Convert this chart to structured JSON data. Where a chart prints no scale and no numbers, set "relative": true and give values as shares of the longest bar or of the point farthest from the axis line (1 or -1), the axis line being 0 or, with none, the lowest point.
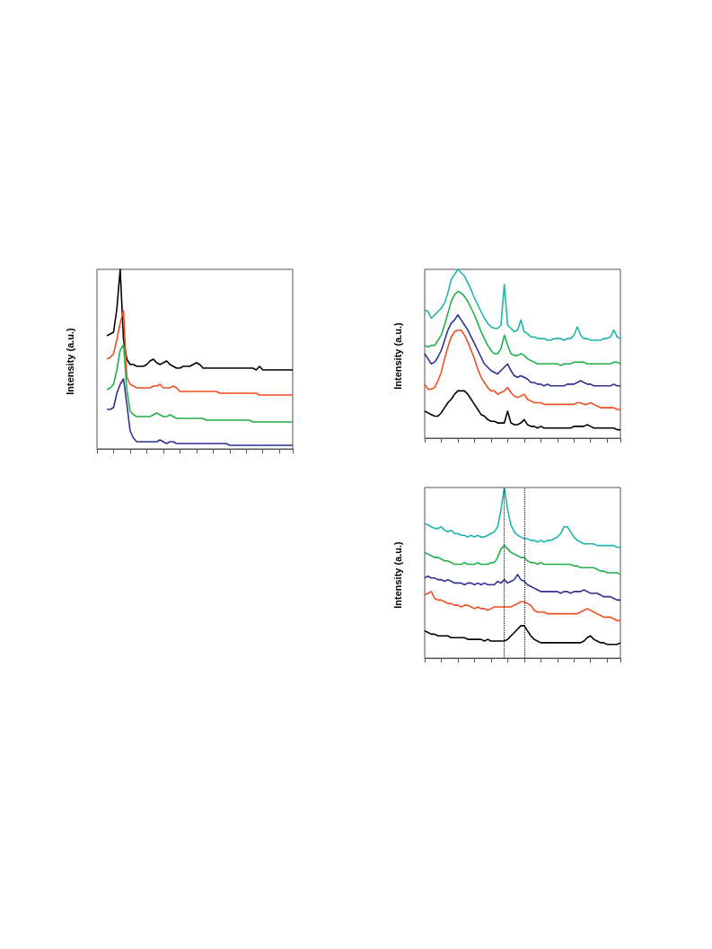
{
  "chart_data": [
    {
      "type": "line",
      "ylabel": "Intensity (a.u.)",
      "relative": true,
      "grid": false,
      "legend": false,
      "marker": "none",
      "categories": [
        null,
        null,
        null,
        null,
        null,
        null,
        null,
        null,
        null,
        null,
        null,
        null,
        null,
        null,
        null,
        null,
        null,
        null,
        null,
        null,
        null,
        null,
        null,
        null,
        null,
        null,
        null,
        null,
        null,
        null,
        null,
        null,
        null,
        null,
        null,
        null,
        null,
        null,
        null,
        null,
        null,
        null,
        null,
        null,
        null,
        null,
        null,
        null,
        null,
        null,
        null,
        null,
        null,
        null,
        null,
        null,
        null,
        null,
        null,
        null
      ],
      "series": [
        {
          "color": "#000000",
          "values": [
            null,
            null,
            null,
            0.63,
            0.64,
            0.65,
            0.78,
            1.0,
            0.61,
            0.5,
            0.47,
            0.47,
            0.46,
            0.46,
            0.46,
            0.47,
            0.49,
            0.5,
            0.48,
            0.47,
            0.48,
            0.49,
            0.47,
            0.46,
            0.45,
            0.45,
            0.46,
            0.46,
            0.46,
            0.47,
            0.48,
            0.47,
            0.45,
            0.45,
            0.45,
            0.45,
            0.45,
            0.45,
            0.45,
            0.45,
            0.45,
            0.45,
            0.45,
            0.45,
            0.45,
            0.45,
            0.45,
            0.45,
            0.44,
            0.46,
            0.44,
            0.44,
            0.44,
            0.44,
            0.44,
            0.44,
            0.44,
            0.44,
            0.44,
            0.44
          ]
        },
        {
          "color": "#f04e23",
          "values": [
            null,
            null,
            null,
            0.5,
            0.51,
            0.53,
            0.61,
            0.7,
            0.77,
            0.4,
            0.36,
            0.35,
            0.34,
            0.34,
            0.34,
            0.34,
            0.34,
            0.35,
            0.35,
            0.36,
            0.34,
            0.34,
            0.34,
            0.35,
            0.34,
            0.32,
            0.32,
            0.32,
            0.32,
            0.32,
            0.32,
            0.32,
            0.32,
            0.32,
            0.32,
            0.32,
            0.32,
            0.31,
            0.31,
            0.31,
            0.31,
            0.31,
            0.31,
            0.31,
            0.31,
            0.31,
            0.31,
            0.31,
            0.31,
            0.3,
            0.3,
            0.3,
            0.3,
            0.3,
            0.3,
            0.3,
            0.3,
            0.3,
            0.3,
            0.3
          ]
        },
        {
          "color": "#22b04b",
          "values": [
            null,
            null,
            null,
            0.33,
            0.34,
            0.36,
            0.44,
            0.55,
            0.58,
            0.33,
            0.21,
            0.19,
            0.18,
            0.18,
            0.18,
            0.18,
            0.18,
            0.19,
            0.2,
            0.19,
            0.18,
            0.18,
            0.19,
            0.18,
            0.17,
            0.17,
            0.17,
            0.17,
            0.17,
            0.17,
            0.17,
            0.17,
            0.17,
            0.16,
            0.16,
            0.16,
            0.16,
            0.16,
            0.16,
            0.16,
            0.16,
            0.16,
            0.16,
            0.16,
            0.16,
            0.16,
            0.16,
            0.15,
            0.15,
            0.15,
            0.15,
            0.15,
            0.15,
            0.15,
            0.15,
            0.15,
            0.15,
            0.15,
            0.15,
            0.15
          ]
        },
        {
          "color": "#2e3192",
          "values": [
            null,
            null,
            null,
            0.22,
            0.22,
            0.23,
            0.31,
            0.36,
            0.39,
            0.25,
            0.1,
            0.06,
            0.04,
            0.04,
            0.04,
            0.04,
            0.04,
            0.04,
            0.04,
            0.05,
            0.04,
            0.03,
            0.04,
            0.04,
            0.03,
            0.03,
            0.03,
            0.03,
            0.03,
            0.03,
            0.03,
            0.03,
            0.03,
            0.03,
            0.03,
            0.03,
            0.03,
            0.03,
            0.03,
            0.03,
            0.02,
            0.02,
            0.02,
            0.02,
            0.02,
            0.02,
            0.02,
            0.02,
            0.02,
            0.02,
            0.02,
            0.02,
            0.02,
            0.02,
            0.02,
            0.02,
            0.02,
            0.02,
            0.02,
            0.02
          ]
        }
      ]
    },
    {
      "type": "line",
      "ylabel": "Intensity (a.u.)",
      "relative": true,
      "grid": false,
      "legend": false,
      "marker": "none",
      "categories": [
        null,
        null,
        null,
        null,
        null,
        null,
        null,
        null,
        null,
        null,
        null,
        null,
        null,
        null,
        null,
        null,
        null,
        null,
        null,
        null,
        null,
        null,
        null,
        null,
        null,
        null,
        null,
        null,
        null,
        null,
        null,
        null,
        null,
        null,
        null,
        null,
        null,
        null,
        null,
        null,
        null,
        null,
        null,
        null,
        null,
        null,
        null,
        null,
        null,
        null,
        null,
        null,
        null,
        null,
        null,
        null,
        null,
        null,
        null,
        null
      ],
      "series": [
        {
          "color": "#1fb5ad",
          "values": [
            0.76,
            0.75,
            0.71,
            0.73,
            0.75,
            0.77,
            0.8,
            0.86,
            0.94,
            0.97,
            1.0,
            0.98,
            0.96,
            0.92,
            0.88,
            0.83,
            0.79,
            0.75,
            0.71,
            0.68,
            0.66,
            0.65,
            0.65,
            0.67,
            0.91,
            0.67,
            0.65,
            0.63,
            0.64,
            0.7,
            0.63,
            0.62,
            0.6,
            0.6,
            0.59,
            0.59,
            0.59,
            0.58,
            0.58,
            0.59,
            0.59,
            0.59,
            0.58,
            0.59,
            0.59,
            0.61,
            0.66,
            0.61,
            0.59,
            0.59,
            0.58,
            0.58,
            0.58,
            0.58,
            0.59,
            0.59,
            0.6,
            0.64,
            0.6,
            0.59
          ]
        },
        {
          "color": "#22b04b",
          "values": [
            0.55,
            0.54,
            0.55,
            0.55,
            0.58,
            0.61,
            0.67,
            0.74,
            0.81,
            0.85,
            0.87,
            0.86,
            0.84,
            0.81,
            0.77,
            0.73,
            0.68,
            0.63,
            0.59,
            0.55,
            0.52,
            0.5,
            0.5,
            0.53,
            0.61,
            0.55,
            0.5,
            0.49,
            0.49,
            0.5,
            0.49,
            0.47,
            0.46,
            0.45,
            0.44,
            0.44,
            0.44,
            0.44,
            0.44,
            0.44,
            0.44,
            0.43,
            0.44,
            0.44,
            0.44,
            0.45,
            0.45,
            0.45,
            0.45,
            0.44,
            0.44,
            0.44,
            0.44,
            0.44,
            0.44,
            0.44,
            0.44,
            0.45,
            0.45,
            0.44
          ]
        },
        {
          "color": "#2e3192",
          "values": [
            0.5,
            0.47,
            0.44,
            0.45,
            0.48,
            0.52,
            0.58,
            0.64,
            0.68,
            0.7,
            0.73,
            0.7,
            0.67,
            0.64,
            0.6,
            0.56,
            0.52,
            0.48,
            0.44,
            0.42,
            0.4,
            0.39,
            0.38,
            0.4,
            0.42,
            0.44,
            0.4,
            0.37,
            0.36,
            0.37,
            0.36,
            0.35,
            0.33,
            0.33,
            0.32,
            0.32,
            0.31,
            0.32,
            0.31,
            0.31,
            0.31,
            0.31,
            0.31,
            0.32,
            0.32,
            0.32,
            0.33,
            0.34,
            0.33,
            0.32,
            0.32,
            0.31,
            0.31,
            0.31,
            0.31,
            0.31,
            0.31,
            0.32,
            0.31,
            0.31
          ]
        },
        {
          "color": "#f04e23",
          "values": [
            0.32,
            0.29,
            0.29,
            0.3,
            0.34,
            0.39,
            0.47,
            0.54,
            0.6,
            0.63,
            0.64,
            0.64,
            0.61,
            0.57,
            0.52,
            0.47,
            0.41,
            0.36,
            0.33,
            0.3,
            0.28,
            0.28,
            0.26,
            0.27,
            0.28,
            0.3,
            0.27,
            0.25,
            0.24,
            0.25,
            0.26,
            0.23,
            0.22,
            0.21,
            0.21,
            0.21,
            0.2,
            0.2,
            0.2,
            0.2,
            0.2,
            0.2,
            0.2,
            0.2,
            0.2,
            0.2,
            0.21,
            0.21,
            0.2,
            0.2,
            0.21,
            0.2,
            0.19,
            0.18,
            0.18,
            0.18,
            0.18,
            0.18,
            0.17,
            0.17
          ]
        },
        {
          "color": "#000000",
          "values": [
            0.16,
            0.15,
            0.14,
            0.13,
            0.13,
            0.15,
            0.18,
            0.21,
            0.23,
            0.26,
            0.28,
            0.28,
            0.28,
            0.26,
            0.23,
            0.2,
            0.17,
            0.14,
            0.13,
            0.11,
            0.1,
            0.1,
            0.09,
            0.09,
            0.09,
            0.16,
            0.09,
            0.08,
            0.08,
            0.09,
            0.11,
            0.08,
            0.07,
            0.07,
            0.06,
            0.07,
            0.06,
            0.06,
            0.06,
            0.06,
            0.06,
            0.06,
            0.06,
            0.06,
            0.06,
            0.07,
            0.07,
            0.07,
            0.07,
            0.08,
            0.07,
            0.06,
            0.06,
            0.06,
            0.06,
            0.06,
            0.06,
            0.06,
            0.05,
            0.05
          ]
        }
      ]
    },
    {
      "type": "line",
      "ylabel": "Intensity (a.u.)",
      "relative": true,
      "grid": false,
      "legend": false,
      "marker": "none",
      "categories": [
        null,
        null,
        null,
        null,
        null,
        null,
        null,
        null,
        null,
        null,
        null,
        null,
        null,
        null,
        null,
        null,
        null,
        null,
        null,
        null,
        null,
        null,
        null,
        null,
        null,
        null,
        null,
        null,
        null,
        null,
        null,
        null,
        null,
        null,
        null,
        null,
        null,
        null,
        null,
        null,
        null,
        null,
        null,
        null,
        null,
        null,
        null,
        null,
        null,
        null,
        null,
        null,
        null,
        null,
        null,
        null,
        null,
        null,
        null,
        null
      ],
      "series": [
        {
          "color": "#1fb5ad",
          "values": [
            0.79,
            0.78,
            0.77,
            0.76,
            0.76,
            0.77,
            0.75,
            0.74,
            0.75,
            0.73,
            0.73,
            0.72,
            0.72,
            0.71,
            0.72,
            0.71,
            0.72,
            0.71,
            0.71,
            0.72,
            0.73,
            0.74,
            0.77,
            0.87,
            1.0,
            0.87,
            0.78,
            0.74,
            0.72,
            0.71,
            0.7,
            0.7,
            0.69,
            0.69,
            0.68,
            0.69,
            0.68,
            0.69,
            0.69,
            0.7,
            0.71,
            0.73,
            0.77,
            0.77,
            0.74,
            0.71,
            0.69,
            0.68,
            0.67,
            0.67,
            0.67,
            0.67,
            0.66,
            0.66,
            0.66,
            0.66,
            0.66,
            0.66,
            0.65,
            0.65
          ]
        },
        {
          "color": "#22b04b",
          "values": [
            0.62,
            0.61,
            0.6,
            0.59,
            0.59,
            0.58,
            0.57,
            0.57,
            0.56,
            0.55,
            0.55,
            0.55,
            0.56,
            0.55,
            0.55,
            0.55,
            0.56,
            0.55,
            0.55,
            0.55,
            0.56,
            0.56,
            0.59,
            0.64,
            0.66,
            0.64,
            0.62,
            0.61,
            0.6,
            0.59,
            0.59,
            0.57,
            0.56,
            0.56,
            0.55,
            0.56,
            0.55,
            0.55,
            0.55,
            0.55,
            0.55,
            0.55,
            0.55,
            0.55,
            0.55,
            0.54,
            0.54,
            0.53,
            0.53,
            0.53,
            0.53,
            0.53,
            0.52,
            0.51,
            0.51,
            0.5,
            0.5,
            0.5,
            0.5,
            0.49
          ]
        },
        {
          "color": "#2e3192",
          "values": [
            0.47,
            0.48,
            0.47,
            0.47,
            0.46,
            0.46,
            0.45,
            0.46,
            0.45,
            0.44,
            0.44,
            0.44,
            0.43,
            0.44,
            0.44,
            0.43,
            0.44,
            0.43,
            0.44,
            0.43,
            0.43,
            0.43,
            0.45,
            0.44,
            0.46,
            0.44,
            0.45,
            0.46,
            0.49,
            0.46,
            0.45,
            0.43,
            0.42,
            0.41,
            0.4,
            0.39,
            0.39,
            0.39,
            0.39,
            0.39,
            0.39,
            0.38,
            0.39,
            0.39,
            0.38,
            0.39,
            0.39,
            0.39,
            0.4,
            0.39,
            0.38,
            0.38,
            0.38,
            0.37,
            0.36,
            0.36,
            0.36,
            0.35,
            0.34,
            0.34
          ]
        },
        {
          "color": "#f04e23",
          "values": [
            0.37,
            0.38,
            0.39,
            0.35,
            0.34,
            0.34,
            0.33,
            0.32,
            0.32,
            0.31,
            0.31,
            0.3,
            0.31,
            0.31,
            0.3,
            0.29,
            0.3,
            0.29,
            0.29,
            0.28,
            0.29,
            0.3,
            0.3,
            0.3,
            0.3,
            0.3,
            0.3,
            0.31,
            0.32,
            0.33,
            0.33,
            0.32,
            0.31,
            0.28,
            0.27,
            0.27,
            0.27,
            0.26,
            0.26,
            0.26,
            0.26,
            0.26,
            0.26,
            0.26,
            0.26,
            0.26,
            0.26,
            0.27,
            0.28,
            0.29,
            0.28,
            0.27,
            0.26,
            0.25,
            0.24,
            0.24,
            0.24,
            0.23,
            0.22,
            0.22
          ]
        },
        {
          "color": "#000000",
          "values": [
            0.16,
            0.15,
            0.14,
            0.14,
            0.13,
            0.13,
            0.13,
            0.13,
            0.12,
            0.12,
            0.12,
            0.12,
            0.12,
            0.11,
            0.11,
            0.11,
            0.11,
            0.11,
            0.1,
            0.11,
            0.1,
            0.1,
            0.1,
            0.1,
            0.1,
            0.11,
            0.13,
            0.15,
            0.17,
            0.19,
            0.19,
            0.16,
            0.13,
            0.11,
            0.1,
            0.09,
            0.09,
            0.09,
            0.09,
            0.09,
            0.09,
            0.09,
            0.09,
            0.09,
            0.09,
            0.09,
            0.09,
            0.09,
            0.1,
            0.12,
            0.13,
            0.11,
            0.1,
            0.09,
            0.09,
            0.08,
            0.08,
            0.08,
            0.08,
            0.09
          ]
        }
      ]
    }
  ]
}
